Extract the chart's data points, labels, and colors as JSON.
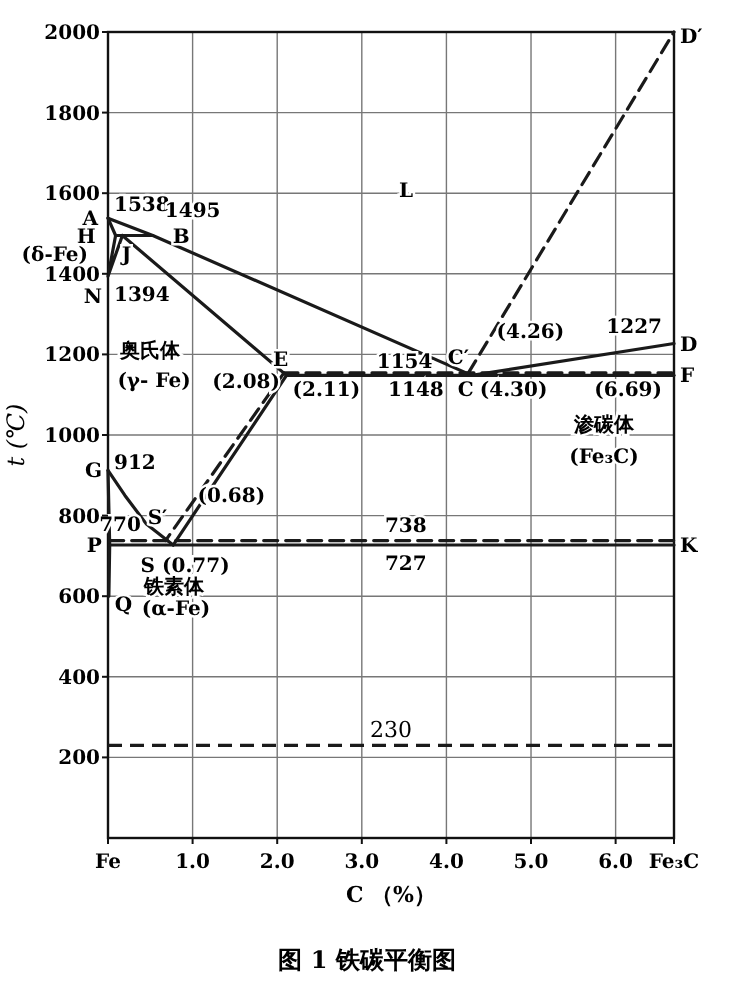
{
  "chart_data": {
    "type": "line",
    "title": "图 1   铁碳平衡图",
    "xlabel": "C （%）",
    "ylabel": "t (℃)",
    "xlim": [
      0,
      6.69
    ],
    "ylim": [
      0,
      2000
    ],
    "xticks": [
      {
        "value": 0,
        "label": "Fe"
      },
      {
        "value": 1,
        "label": "1.0"
      },
      {
        "value": 2,
        "label": "2.0"
      },
      {
        "value": 3,
        "label": "3.0"
      },
      {
        "value": 4,
        "label": "4.0"
      },
      {
        "value": 5,
        "label": "5.0"
      },
      {
        "value": 6,
        "label": "6.0"
      },
      {
        "value": 6.69,
        "label": "Fe₃C"
      }
    ],
    "yticks": [
      200,
      400,
      600,
      800,
      1000,
      1200,
      1400,
      1600,
      1800,
      2000
    ],
    "grid": true,
    "series": [
      {
        "color": "#1a1a1a",
        "line_style": "solid",
        "x": [
          0,
          0.53,
          4.3
        ],
        "values": [
          1538,
          1495,
          1148
        ]
      },
      {
        "color": "#1a1a1a",
        "line_style": "solid",
        "x": [
          4.3,
          6.69
        ],
        "values": [
          1148,
          1227
        ]
      },
      {
        "color": "#1a1a1a",
        "line_style": "solid",
        "x": [
          0,
          0.09
        ],
        "values": [
          1538,
          1495
        ]
      },
      {
        "color": "#1a1a1a",
        "line_style": "solid",
        "x": [
          0.09,
          0.53
        ],
        "values": [
          1495,
          1495
        ]
      },
      {
        "color": "#1a1a1a",
        "line_style": "solid",
        "x": [
          0.09,
          0,
          0.17
        ],
        "values": [
          1495,
          1394,
          1495
        ]
      },
      {
        "color": "#1a1a1a",
        "line_style": "solid",
        "x": [
          0.17,
          2.11
        ],
        "values": [
          1495,
          1148
        ]
      },
      {
        "color": "#1a1a1a",
        "line_style": "solid",
        "x": [
          2.11,
          6.69
        ],
        "values": [
          1148,
          1148
        ]
      },
      {
        "color": "#1a1a1a",
        "line_style": "solid",
        "x": [
          0,
          0.2,
          0.45,
          0.77
        ],
        "values": [
          912,
          850,
          780,
          727
        ]
      },
      {
        "color": "#1a1a1a",
        "line_style": "solid",
        "x": [
          0,
          0.02,
          0.01
        ],
        "values": [
          912,
          727,
          600
        ]
      },
      {
        "color": "#1a1a1a",
        "line_style": "solid",
        "x": [
          2.11,
          0.77
        ],
        "values": [
          1148,
          727
        ]
      },
      {
        "color": "#1a1a1a",
        "line_style": "solid",
        "x": [
          0.02,
          6.69
        ],
        "values": [
          727,
          727
        ]
      },
      {
        "color": "#1a1a1a",
        "line_style": "dashed",
        "x": [
          2.08,
          6.69
        ],
        "values": [
          1154,
          1154
        ]
      },
      {
        "color": "#1a1a1a",
        "line_style": "dashed",
        "x": [
          2.08,
          0.68
        ],
        "values": [
          1154,
          738
        ]
      },
      {
        "color": "#1a1a1a",
        "line_style": "dashed",
        "x": [
          0.02,
          6.69
        ],
        "values": [
          738,
          738
        ]
      },
      {
        "color": "#1a1a1a",
        "line_style": "dashed",
        "x": [
          4.26,
          6.69
        ],
        "values": [
          1154,
          2000
        ]
      }
    ],
    "ref_lines": [
      {
        "axis": "y",
        "value": 230,
        "label": "230",
        "line_style": "dashed",
        "color": "#1a1a1a"
      }
    ],
    "annotations": [
      {
        "text": "A",
        "x": 0,
        "y": 1538
      },
      {
        "text": "1538",
        "x": 0,
        "y": 1538
      },
      {
        "text": "1495",
        "x": 0.53,
        "y": 1495
      },
      {
        "text": "H",
        "x": 0.09,
        "y": 1495
      },
      {
        "text": "B",
        "x": 0.53,
        "y": 1495
      },
      "(δ-Fe)",
      {
        "text": "J",
        "x": 0.17,
        "y": 1495
      },
      {
        "text": "N",
        "x": 0,
        "y": 1394
      },
      {
        "text": "1394",
        "x": 0,
        "y": 1394
      },
      "L",
      "奥氏体",
      "(γ- Fe)",
      {
        "text": "E",
        "x": 2.11,
        "y": 1148
      },
      {
        "text": "(2.08)",
        "x": 2.08,
        "y": 1154
      },
      {
        "text": "(2.11)",
        "x": 2.11,
        "y": 1148
      },
      {
        "text": "1154",
        "x": 4.26,
        "y": 1154
      },
      {
        "text": "1148",
        "x": 4.3,
        "y": 1148
      },
      {
        "text": "C",
        "x": 4.3,
        "y": 1148
      },
      {
        "text": "(4.30)",
        "x": 4.3,
        "y": 1148
      },
      {
        "text": "C′",
        "x": 4.26,
        "y": 1154
      },
      {
        "text": "(4.26)",
        "x": 4.26,
        "y": 1154
      },
      {
        "text": "1227",
        "x": 6.69,
        "y": 1227
      },
      {
        "text": "D",
        "x": 6.69,
        "y": 1227
      },
      {
        "text": "F",
        "x": 6.69,
        "y": 1148
      },
      {
        "text": "(6.69)",
        "x": 6.69,
        "y": 1148
      },
      {
        "text": "D′",
        "x": 6.69,
        "y": 2000
      },
      "渗碳体",
      "(Fe₃C)",
      {
        "text": "G",
        "x": 0,
        "y": 912
      },
      {
        "text": "912",
        "x": 0,
        "y": 912
      },
      {
        "text": "(0.68)",
        "x": 0.68,
        "y": 738
      },
      {
        "text": "S′",
        "x": 0.68,
        "y": 738
      },
      "770",
      {
        "text": "P",
        "x": 0.02,
        "y": 727
      },
      {
        "text": "S (0.77)",
        "x": 0.77,
        "y": 727
      },
      "铁素体",
      "(α-Fe)",
      {
        "text": "Q",
        "x": 0.01,
        "y": 600
      },
      {
        "text": "738",
        "x": 3.52,
        "y": 738
      },
      {
        "text": "727",
        "x": 3.52,
        "y": 727
      },
      {
        "text": "K",
        "x": 6.69,
        "y": 727
      }
    ]
  }
}
